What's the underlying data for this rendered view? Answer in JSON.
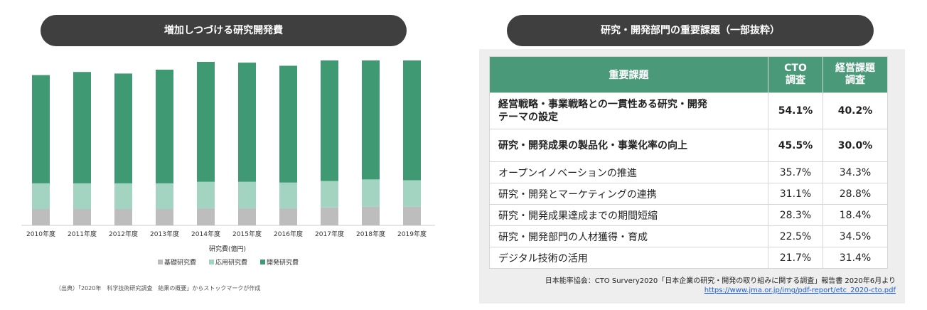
{
  "left_title": "増加しつづける研究開発費",
  "right_title": "研究・開発部門の重要課題（一部抜粋）",
  "left_note": "（出典）「2020年　科学技術研究調査　結果の概要」からストックマークが作成",
  "chart_data": {
    "type": "bar",
    "stacked": true,
    "categories": [
      "2010年度",
      "2011年度",
      "2012年度",
      "2013年度",
      "2014年度",
      "2015年度",
      "2016年度",
      "2017年度",
      "2018年度",
      "2019年度"
    ],
    "series": [
      {
        "name": "基礎研究費",
        "color": "#bdbdbd",
        "values": [
          2.1,
          2.1,
          2.1,
          2.1,
          2.2,
          2.2,
          2.2,
          2.3,
          2.4,
          2.4
        ]
      },
      {
        "name": "応用研究費",
        "color": "#a3d3c1",
        "values": [
          3.3,
          3.3,
          3.3,
          3.3,
          3.4,
          3.4,
          3.3,
          3.4,
          3.5,
          3.4
        ]
      },
      {
        "name": "開発研究費",
        "color": "#3f9973",
        "values": [
          13.9,
          14.3,
          14.1,
          14.6,
          15.4,
          15.3,
          15.0,
          15.5,
          15.7,
          15.7
        ]
      }
    ],
    "xlabel": "研究費(億円)",
    "ylim": [
      0,
      21
    ],
    "legend_position": "bottom"
  },
  "table": {
    "headers": [
      "重要課題",
      "CTO\n調査",
      "経営課題\n調査"
    ],
    "rows": [
      {
        "label": "経営戦略・事業戦略との一貫性ある研究・開発\nテーマの設定",
        "cto": "54.1%",
        "mgmt": "40.2%",
        "bold": true
      },
      {
        "label": "研究・開発成果の製品化・事業化率の向上",
        "cto": "45.5%",
        "mgmt": "30.0%",
        "bold": true
      },
      {
        "label": "オープンイノベーションの推進",
        "cto": "35.7%",
        "mgmt": "34.3%",
        "bold": false
      },
      {
        "label": "研究・開発とマーケティングの連携",
        "cto": "31.1%",
        "mgmt": "28.8%",
        "bold": false
      },
      {
        "label": "研究・開発成果達成までの期間短縮",
        "cto": "28.3%",
        "mgmt": "18.4%",
        "bold": false
      },
      {
        "label": "研究・開発部門の人材獲得・育成",
        "cto": "22.5%",
        "mgmt": "34.5%",
        "bold": false
      },
      {
        "label": "デジタル技術の活用",
        "cto": "21.7%",
        "mgmt": "31.4%",
        "bold": false
      }
    ]
  },
  "source_line": "日本能率協会：CTO Survery2020「日本企業の研究・開発の取り組みに関する調査」報告書 2020年6月より",
  "source_url": "https://www.jma.or.jp/img/pdf-report/etc_2020-cto.pdf"
}
